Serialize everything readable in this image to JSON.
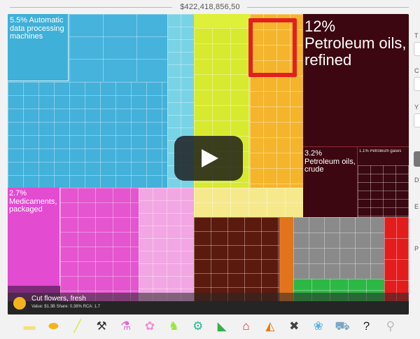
{
  "header": {
    "total": "$422,418,856,50"
  },
  "treemap": {
    "blocks": {
      "automatic": {
        "pct": "5.5%",
        "name": "Automatic data processing machines"
      },
      "medicaments": {
        "pct": "2.7%",
        "name": "Medicaments, packaged"
      },
      "petro_refined": {
        "pct": "12%",
        "name": "Petroleum oils, refined"
      },
      "petro_crude": {
        "pct": "3.2%",
        "name": "Petroleum oils, crude"
      },
      "petro_gases": {
        "pct": "1.1%",
        "name": "Petroleum gases"
      }
    }
  },
  "tooltip": {
    "title": "Cut flowers, fresh",
    "subtitle": "Value: $1.3B  Share: 0.38%  RCA: 1.7"
  },
  "sidebar": {
    "letters": [
      "T",
      "C",
      "Y",
      "D",
      "E",
      "P"
    ]
  },
  "categories": [
    {
      "name": "textiles-icon",
      "glyph": "▬",
      "color": "#f2e27a"
    },
    {
      "name": "vegetable-icon",
      "glyph": "⬬",
      "color": "#f1b51c"
    },
    {
      "name": "stone-icon",
      "glyph": "╱",
      "color": "#d6e638"
    },
    {
      "name": "metals-icon",
      "glyph": "⚒",
      "color": "#333333"
    },
    {
      "name": "chemicals-icon",
      "glyph": "⚗",
      "color": "#e06bd7"
    },
    {
      "name": "plastics-icon",
      "glyph": "✿",
      "color": "#f08fd2"
    },
    {
      "name": "animal-icon",
      "glyph": "♞",
      "color": "#9be342"
    },
    {
      "name": "machines-icon",
      "glyph": "⚙",
      "color": "#2fb391"
    },
    {
      "name": "footwear-icon",
      "glyph": "◣",
      "color": "#37b04a"
    },
    {
      "name": "house-icon",
      "glyph": "⌂",
      "color": "#d92121"
    },
    {
      "name": "minerals-icon",
      "glyph": "◭",
      "color": "#e37a1c"
    },
    {
      "name": "tools-icon",
      "glyph": "✖",
      "color": "#444444"
    },
    {
      "name": "instruments-icon",
      "glyph": "❀",
      "color": "#5ab4e0"
    },
    {
      "name": "transport-icon",
      "glyph": "⛟",
      "color": "#79a7c7"
    },
    {
      "name": "unknown-icon",
      "glyph": "?",
      "color": "#222222"
    },
    {
      "name": "misc-icon",
      "glyph": "⚲",
      "color": "#bbbbbb"
    }
  ]
}
